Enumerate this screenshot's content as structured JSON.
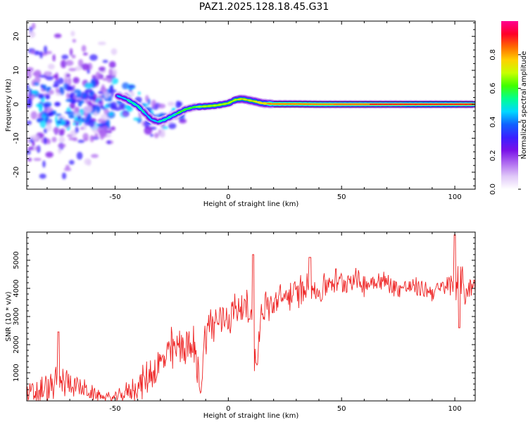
{
  "title": "PAZ1.2025.128.18.45.G31",
  "chart_data": [
    {
      "type": "heatmap",
      "xlabel": "Height of straight line (km)",
      "ylabel": "Frequency (Hz)",
      "xlim": [
        -89,
        109
      ],
      "ylim": [
        -25,
        24.5
      ],
      "x_ticks": [
        -50,
        0,
        50,
        100
      ],
      "y_ticks": [
        -20,
        -10,
        0,
        10,
        20
      ],
      "colorbar": {
        "label": "Normalized spectral amplitude",
        "range": [
          0,
          1
        ],
        "ticks": [
          0.0,
          0.2,
          0.4,
          0.6,
          0.8
        ],
        "tick_labels": [
          "0.0",
          "0.2",
          "0.4",
          "0.6",
          "0.8"
        ],
        "colors": [
          "#ffffff",
          "#e0c8f8",
          "#b06cf0",
          "#7a12e8",
          "#3a20ff",
          "#1060ff",
          "#00d8ff",
          "#00ff90",
          "#40ff00",
          "#c8ff00",
          "#ffd000",
          "#ff6a00",
          "#ff0028",
          "#ff0090"
        ]
      },
      "ridge": {
        "x": [
          -49,
          -45,
          -40,
          -37,
          -34,
          -31,
          -28,
          -25,
          -22,
          -19,
          -15,
          -10,
          -5,
          0,
          3,
          6,
          9,
          12,
          15,
          20,
          30,
          40,
          50,
          60,
          70,
          80,
          90,
          100,
          109
        ],
        "y": [
          2.5,
          1.5,
          -0.5,
          -2.5,
          -4.5,
          -5.2,
          -4.5,
          -3.5,
          -2.5,
          -1.5,
          -0.8,
          -0.6,
          -0.3,
          0.3,
          1.3,
          1.6,
          1.2,
          0.8,
          0.3,
          0.1,
          0.1,
          0.0,
          0.0,
          0.0,
          0.0,
          0.0,
          0.0,
          0.0,
          0.0
        ],
        "amplitude": [
          0.45,
          0.5,
          0.55,
          0.5,
          0.45,
          0.5,
          0.55,
          0.55,
          0.6,
          0.6,
          0.65,
          0.7,
          0.7,
          0.72,
          0.72,
          0.75,
          0.75,
          0.78,
          0.8,
          0.82,
          0.85,
          0.85,
          0.88,
          0.88,
          0.9,
          0.92,
          0.92,
          0.92,
          0.9
        ]
      },
      "noise_region_x": [
        -89,
        -50
      ]
    },
    {
      "type": "line",
      "xlabel": "Height of straight line (km)",
      "ylabel": "SNR (10 * v/v)",
      "xlim": [
        -89,
        109
      ],
      "ylim": [
        0,
        6000
      ],
      "x_ticks": [
        -50,
        0,
        50,
        100
      ],
      "y_ticks": [
        1000,
        2000,
        3000,
        4000,
        5000
      ],
      "series": [
        {
          "color": "#ee2222",
          "x": [
            -89,
            -80,
            -75,
            -70,
            -65,
            -60,
            -55,
            -50,
            -45,
            -40,
            -35,
            -30,
            -25,
            -20,
            -15,
            -12,
            -10,
            -5,
            0,
            5,
            10,
            12,
            15,
            20,
            25,
            30,
            35,
            40,
            45,
            50,
            55,
            60,
            65,
            70,
            75,
            80,
            85,
            90,
            95,
            100,
            102,
            105,
            109
          ],
          "values": [
            150,
            400,
            650,
            700,
            450,
            250,
            150,
            100,
            300,
            500,
            900,
            1300,
            1800,
            2000,
            1800,
            500,
            2600,
            2800,
            3000,
            3400,
            3100,
            1100,
            3300,
            3400,
            3700,
            3800,
            4100,
            3800,
            4300,
            4200,
            4400,
            4100,
            4300,
            4200,
            4000,
            4050,
            4000,
            3900,
            4000,
            4200,
            4400,
            3900,
            4200
          ],
          "noise_amp": [
            500,
            650,
            700,
            550,
            400,
            300,
            200,
            200,
            400,
            550,
            700,
            800,
            900,
            850,
            900,
            700,
            900,
            800,
            800,
            750,
            700,
            600,
            700,
            650,
            600,
            650,
            600,
            550,
            550,
            500,
            450,
            450,
            450,
            420,
            400,
            380,
            380,
            380,
            420,
            600,
            900,
            700,
            350
          ],
          "annotations": [
            {
              "x": -75,
              "value": 2450
            },
            {
              "x": 11,
              "value": 5200
            },
            {
              "x": 36,
              "value": 5100
            },
            {
              "x": 100,
              "value": 5900
            },
            {
              "x": 102,
              "value": 2600
            }
          ]
        }
      ]
    }
  ]
}
